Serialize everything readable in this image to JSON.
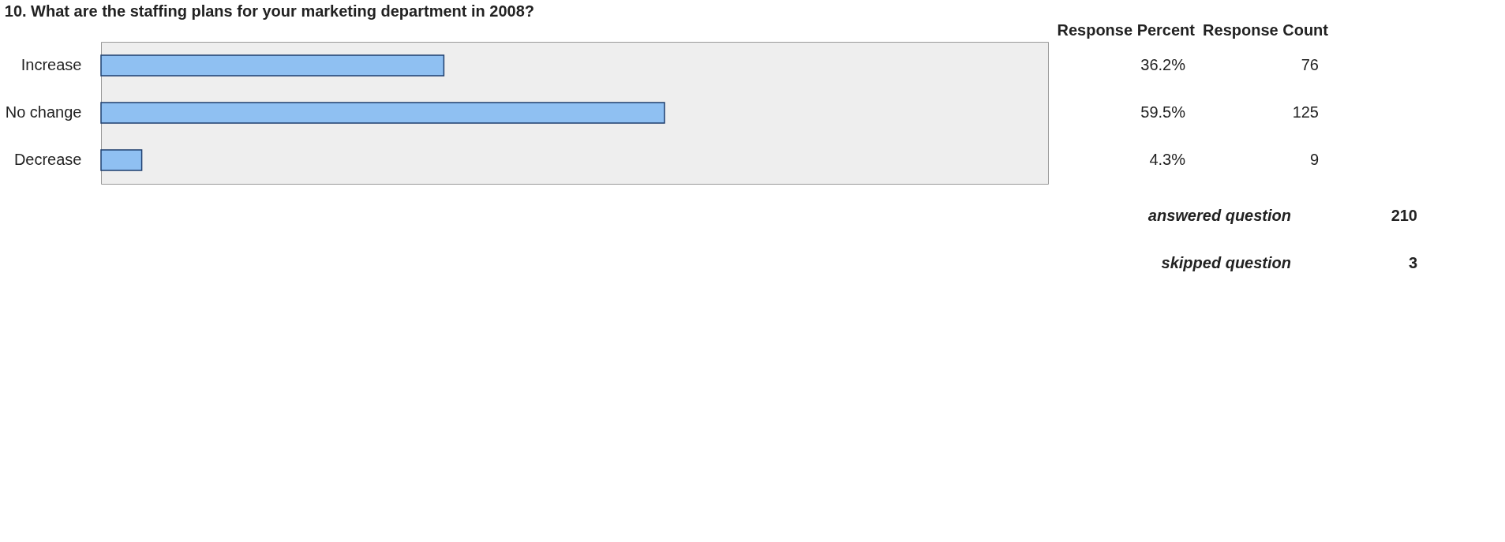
{
  "chart_data": {
    "type": "bar",
    "orientation": "horizontal",
    "title": "10. What are the staffing plans for your marketing department in 2008?",
    "categories": [
      "Increase",
      "No change",
      "Decrease"
    ],
    "values": [
      36.2,
      59.5,
      4.3
    ],
    "value_labels": [
      "36.2%",
      "59.5%",
      "4.3%"
    ],
    "color": "#8fc0f2",
    "xlim": [
      0,
      100
    ],
    "tick_labels": "y",
    "grid": false,
    "annotations": [
      "Response Percent",
      "Response Count",
      "76",
      "125",
      "9",
      "answered question",
      "210",
      "skipped question",
      "3"
    ]
  }
}
